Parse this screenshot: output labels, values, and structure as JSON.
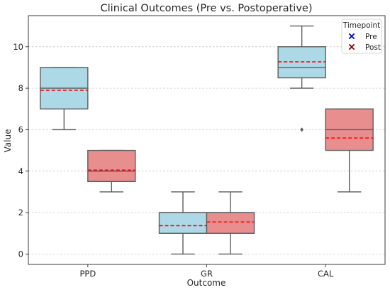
{
  "chart_data": {
    "type": "box",
    "title": "Clinical Outcomes (Pre vs. Postoperative)",
    "xlabel": "Outcome",
    "ylabel": "Value",
    "categories": [
      "PPD",
      "GR",
      "CAL"
    ],
    "ylim": [
      -0.5,
      11.5
    ],
    "yticks": [
      "0",
      "2",
      "4",
      "6",
      "8",
      "10"
    ],
    "grid": true,
    "legend": {
      "title": "Timepoint",
      "position": "top-right",
      "entries": [
        {
          "label": "Pre",
          "marker": "x",
          "color": "#0000cc"
        },
        {
          "label": "Post",
          "marker": "x",
          "color": "#8b0000"
        }
      ]
    },
    "mean_line": {
      "style": "dashed",
      "color": "#ff0000"
    },
    "series": [
      {
        "name": "Pre",
        "color": "#add8e6",
        "boxes": [
          {
            "category": "PPD",
            "whisker_low": 6,
            "q1": 7,
            "median": 8,
            "q3": 9,
            "whisker_high": 9,
            "mean": 7.9,
            "outliers": []
          },
          {
            "category": "GR",
            "whisker_low": 0,
            "q1": 1,
            "median": 2,
            "q3": 2,
            "whisker_high": 3,
            "mean": 1.37,
            "outliers": []
          },
          {
            "category": "CAL",
            "whisker_low": 8,
            "q1": 8.5,
            "median": 9,
            "q3": 10,
            "whisker_high": 11,
            "mean": 9.27,
            "outliers": [
              6
            ]
          }
        ]
      },
      {
        "name": "Post",
        "color": "#e88e8e",
        "boxes": [
          {
            "category": "PPD",
            "whisker_low": 3,
            "q1": 3.5,
            "median": 4,
            "q3": 5,
            "whisker_high": 5,
            "mean": 4.05,
            "outliers": []
          },
          {
            "category": "GR",
            "whisker_low": 0,
            "q1": 1,
            "median": 2,
            "q3": 2,
            "whisker_high": 3,
            "mean": 1.55,
            "outliers": []
          },
          {
            "category": "CAL",
            "whisker_low": 3,
            "q1": 5,
            "median": 6,
            "q3": 7,
            "whisker_high": 7,
            "mean": 5.6,
            "outliers": []
          }
        ]
      }
    ]
  }
}
